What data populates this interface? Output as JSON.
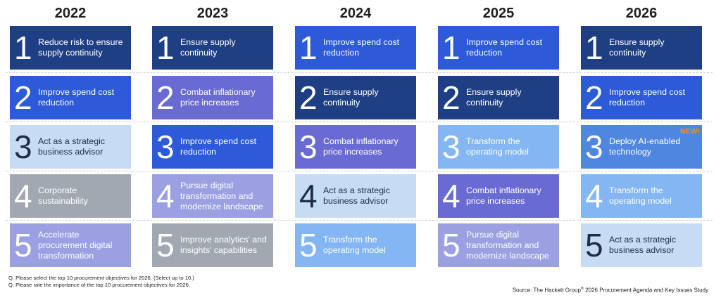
{
  "chart_data": {
    "type": "table",
    "columns": [
      {
        "year": "2022",
        "items": [
          {
            "rank": "1",
            "label": "Reduce risk to ensure supply continuity",
            "color": "#1f3f84",
            "text_color": "#ffffff"
          },
          {
            "rank": "2",
            "label": "Improve spend cost reduction",
            "color": "#2c5ad8",
            "text_color": "#ffffff"
          },
          {
            "rank": "3",
            "label": "Act as a strategic business advisor",
            "color": "#c6dcf4",
            "text_color": "#1e2c4a"
          },
          {
            "rank": "4",
            "label": "Corporate sustainability",
            "color": "#a1a8b2",
            "text_color": "#ffffff"
          },
          {
            "rank": "5",
            "label": "Accelerate procurement digital transformation",
            "color": "#9aa0e2",
            "text_color": "#ffffff"
          }
        ]
      },
      {
        "year": "2023",
        "items": [
          {
            "rank": "1",
            "label": "Ensure supply continuity",
            "color": "#1f3f84",
            "text_color": "#ffffff"
          },
          {
            "rank": "2",
            "label": "Combat inflationary price increases",
            "color": "#6a6bd2",
            "text_color": "#ffffff"
          },
          {
            "rank": "3",
            "label": "Improve spend cost reduction",
            "color": "#2c5ad8",
            "text_color": "#ffffff"
          },
          {
            "rank": "4",
            "label": "Pursue digital transformation and modernize landscape",
            "color": "#9aa0e2",
            "text_color": "#ffffff"
          },
          {
            "rank": "5",
            "label": "Improve analytics' and insights' capabilities",
            "color": "#a1a8b2",
            "text_color": "#ffffff"
          }
        ]
      },
      {
        "year": "2024",
        "items": [
          {
            "rank": "1",
            "label": "Improve spend cost reduction",
            "color": "#2c5ad8",
            "text_color": "#ffffff"
          },
          {
            "rank": "2",
            "label": "Ensure supply continuity",
            "color": "#1f3f84",
            "text_color": "#ffffff"
          },
          {
            "rank": "3",
            "label": "Combat inflationary price increases",
            "color": "#6a6bd2",
            "text_color": "#ffffff"
          },
          {
            "rank": "4",
            "label": "Act as a strategic business advisor",
            "color": "#c6dcf4",
            "text_color": "#1e2c4a"
          },
          {
            "rank": "5",
            "label": "Transform the operating model",
            "color": "#84b6f3",
            "text_color": "#ffffff"
          }
        ]
      },
      {
        "year": "2025",
        "items": [
          {
            "rank": "1",
            "label": "Improve spend cost reduction",
            "color": "#2c5ad8",
            "text_color": "#ffffff"
          },
          {
            "rank": "2",
            "label": "Ensure supply continuity",
            "color": "#1f3f84",
            "text_color": "#ffffff"
          },
          {
            "rank": "3",
            "label": "Transform the operating model",
            "color": "#84b6f3",
            "text_color": "#ffffff"
          },
          {
            "rank": "4",
            "label": "Combat inflationary price increases",
            "color": "#6a6bd2",
            "text_color": "#ffffff"
          },
          {
            "rank": "5",
            "label": "Pursue digital transformation and modernize landscape",
            "color": "#9aa0e2",
            "text_color": "#ffffff"
          }
        ]
      },
      {
        "year": "2026",
        "items": [
          {
            "rank": "1",
            "label": "Ensure supply continuity",
            "color": "#1f3f84",
            "text_color": "#ffffff"
          },
          {
            "rank": "2",
            "label": "Improve spend cost reduction",
            "color": "#2c5ad8",
            "text_color": "#ffffff"
          },
          {
            "rank": "3",
            "label": "Deploy AI-enabled technology",
            "color": "#4f86df",
            "text_color": "#ffffff",
            "badge": "NEW!"
          },
          {
            "rank": "4",
            "label": "Transform the operating model",
            "color": "#84b6f3",
            "text_color": "#ffffff"
          },
          {
            "rank": "5",
            "label": "Act as a strategic business advisor",
            "color": "#c6dcf4",
            "text_color": "#1e2c4a"
          }
        ]
      }
    ]
  },
  "footnotes": [
    "Q. Please select the top 10 procurement objectives for 2026. (Select up to 10.)",
    "Q. Please rate the importance of the top 10 procurement objectives for 2026."
  ],
  "source": {
    "prefix": "Source: The Hackett Group",
    "mark": "®",
    "suffix": " 2026 Procurement Agenda and Key Issues Study"
  },
  "colors": {
    "badge": "#f0921b",
    "separator": "#c7cbd2"
  }
}
